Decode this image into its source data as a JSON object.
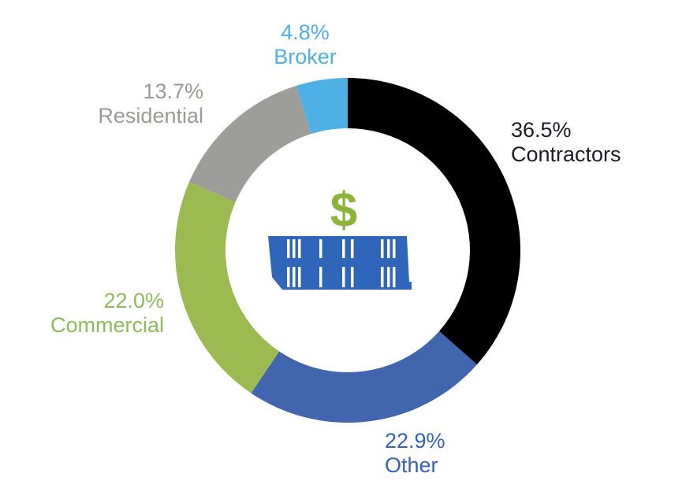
{
  "chart_data": {
    "type": "pie",
    "variant": "donut",
    "title": "",
    "slices": [
      {
        "label": "Contractors",
        "value": 36.5,
        "display": "36.5%",
        "color": "#000000",
        "label_color": "#1c1c28"
      },
      {
        "label": "Other",
        "value": 22.9,
        "display": "22.9%",
        "color": "#4266ad",
        "label_color": "#3563b0"
      },
      {
        "label": "Commercial",
        "value": 22.0,
        "display": "22.0%",
        "color": "#9bbb52",
        "label_color": "#8fba5a"
      },
      {
        "label": "Residential",
        "value": 13.7,
        "display": "13.7%",
        "color": "#9d9d99",
        "label_color": "#9a9a98"
      },
      {
        "label": "Broker",
        "value": 4.8,
        "display": "4.8%",
        "color": "#4fb0e6",
        "label_color": "#4fb0e6"
      }
    ],
    "center_icon": {
      "name": "dollar-container-icon",
      "symbol": "$",
      "symbol_color": "#8cb43a",
      "icon_color": "#2f66b9"
    }
  }
}
